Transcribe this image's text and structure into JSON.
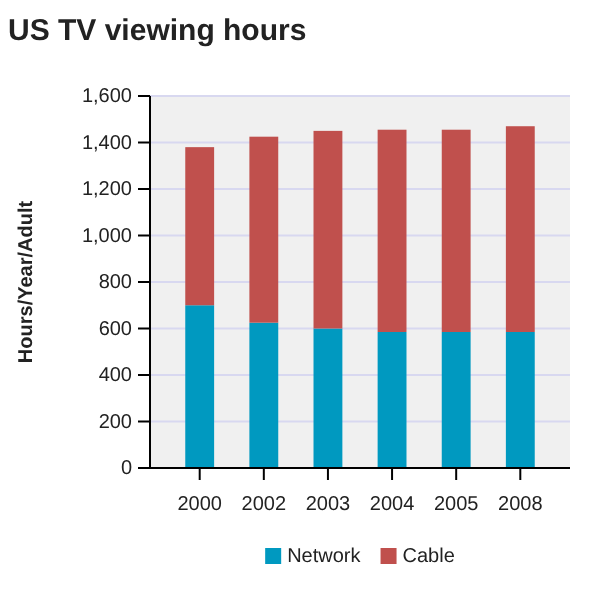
{
  "chart_data": {
    "type": "bar",
    "title": "US TV viewing hours",
    "ylabel": "Hours/Year/Adult",
    "categories": [
      "2000",
      "2002",
      "2003",
      "2004",
      "2005",
      "2008"
    ],
    "stacked": true,
    "series": [
      {
        "name": "Network",
        "color": "#0099c0",
        "values": [
          700,
          625,
          600,
          585,
          585,
          585
        ]
      },
      {
        "name": "Cable",
        "color": "#c0504d",
        "values": [
          680,
          800,
          850,
          870,
          870,
          885
        ]
      }
    ],
    "ylim": [
      0,
      1600
    ],
    "yticks": [
      0,
      {
        "value": 200,
        "label": "200"
      },
      {
        "value": 400,
        "label": "400"
      },
      {
        "value": 600,
        "label": "600"
      },
      {
        "value": 800,
        "label": "800"
      },
      {
        "value": 1000,
        "label": "1,000"
      },
      {
        "value": 1200,
        "label": "1,200"
      },
      {
        "value": 1400,
        "label": "1,400"
      },
      {
        "value": 1600,
        "label": "1,600"
      }
    ],
    "grid": "y",
    "legend": "bottom"
  }
}
